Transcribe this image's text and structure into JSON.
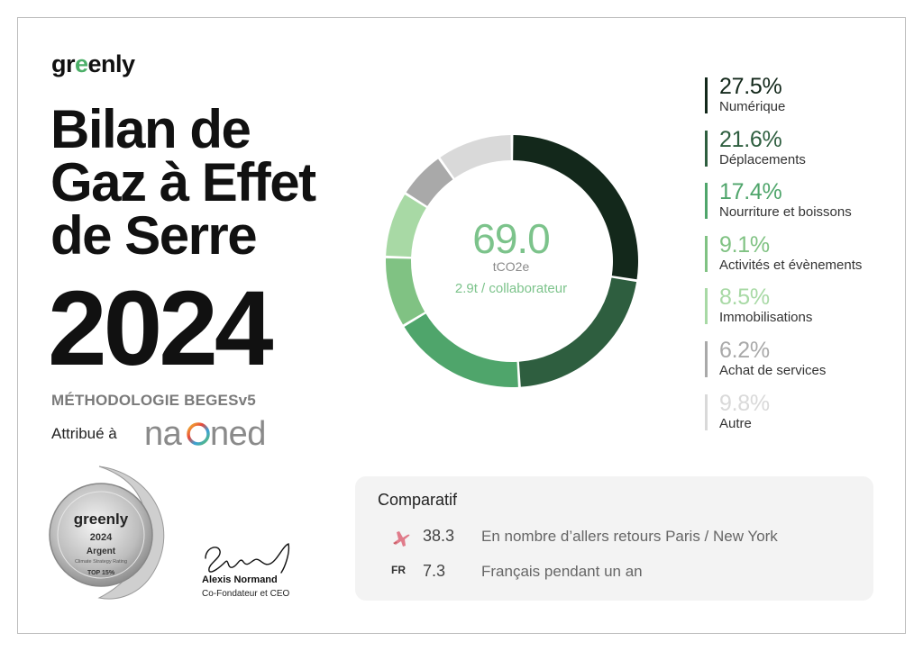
{
  "brand": {
    "name_pre": "gr",
    "name_leaf": "e",
    "name_post": "enly"
  },
  "title": {
    "line1": "Bilan de",
    "line2": "Gaz à Effet",
    "line3": "de Serre",
    "year": "2024"
  },
  "methodology": "MÉTHODOLOGIE BEGESv5",
  "attributed_to": {
    "label": "Attribué à",
    "partner": "naoned"
  },
  "badge": {
    "brand": "greenly",
    "year": "2024",
    "level": "Argent",
    "rating": "Climate Strategy Rating",
    "rank": "TOP 15%"
  },
  "signature": {
    "name": "Alexis Normand",
    "role": "Co-Fondateur et CEO"
  },
  "total": {
    "value": "69.0",
    "unit": "tCO2e",
    "per_employee": "2.9t / collaborateur"
  },
  "colors": {
    "primary": "#111111",
    "accent": "#7cc38b",
    "panel": "#f3f3f3"
  },
  "chart_data": {
    "type": "pie",
    "categories": [
      "Numérique",
      "Déplacements",
      "Nourriture et boissons",
      "Activités et évènements",
      "Immobilisations",
      "Achat de services",
      "Autre"
    ],
    "values": [
      27.5,
      21.6,
      17.4,
      9.1,
      8.5,
      6.2,
      9.8
    ],
    "labels": [
      "27.5%",
      "21.6%",
      "17.4%",
      "9.1%",
      "8.5%",
      "6.2%",
      "9.8%"
    ],
    "colors": [
      "#13281b",
      "#2e5e3f",
      "#4fa56b",
      "#80c283",
      "#a8d9a5",
      "#a9a9a9",
      "#d9d9d9"
    ],
    "legend_placement": "right"
  },
  "comparison": {
    "title": "Comparatif",
    "rows": [
      {
        "icon": "airplane-icon",
        "value": "38.3",
        "label": "En nombre d’allers retours Paris / New York"
      },
      {
        "icon_text": "FR",
        "value": "7.3",
        "label": "Français pendant un an"
      }
    ]
  }
}
